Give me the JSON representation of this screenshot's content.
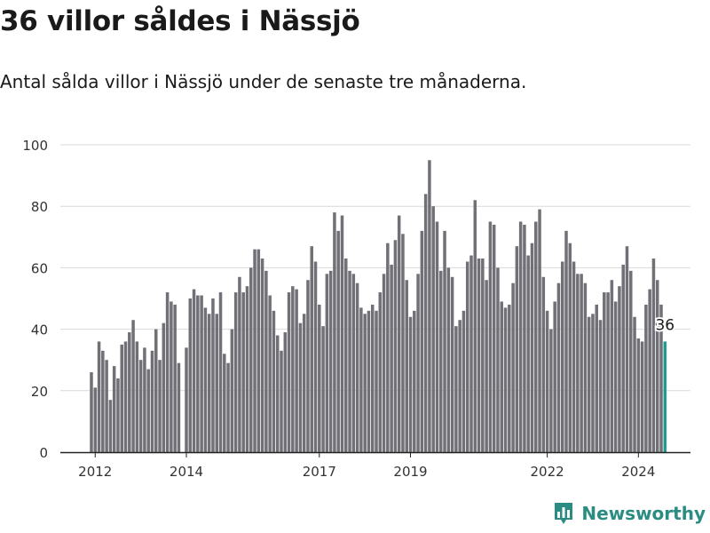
{
  "header": {
    "title": "36 villor såldes i Nässjö",
    "subtitle": "Antal sålda villor i Nässjö under de senaste tre månaderna."
  },
  "logo": {
    "text": "Newsworthy",
    "icon": "bar-chart-icon",
    "color": "#2a8c82"
  },
  "colors": {
    "bar": "#717076",
    "highlight": "#1f9b92",
    "grid": "#d9d9d9",
    "axis": "#222222"
  },
  "chart_data": {
    "type": "bar",
    "title": "",
    "xlabel": "",
    "ylabel": "",
    "ylim": [
      0,
      100
    ],
    "yticks": [
      0,
      20,
      40,
      60,
      80,
      100
    ],
    "xticks": [
      {
        "label": "2012",
        "month": "2012-02"
      },
      {
        "label": "2014",
        "month": "2014-02"
      },
      {
        "label": "2017",
        "month": "2017-01"
      },
      {
        "label": "2019",
        "month": "2019-01"
      },
      {
        "label": "2022",
        "month": "2022-01"
      },
      {
        "label": "2024",
        "month": "2024-01"
      }
    ],
    "grid": true,
    "start_month": "2012-01",
    "values": [
      26,
      21,
      36,
      33,
      30,
      17,
      28,
      24,
      35,
      36,
      39,
      43,
      36,
      30,
      34,
      27,
      33,
      40,
      30,
      42,
      52,
      49,
      48,
      29,
      0,
      34,
      50,
      53,
      51,
      51,
      47,
      45,
      50,
      45,
      52,
      32,
      29,
      40,
      52,
      57,
      52,
      54,
      60,
      66,
      66,
      63,
      59,
      51,
      46,
      38,
      33,
      39,
      52,
      54,
      53,
      42,
      45,
      56,
      67,
      62,
      48,
      41,
      58,
      59,
      78,
      72,
      77,
      63,
      59,
      58,
      55,
      47,
      45,
      46,
      48,
      46,
      52,
      58,
      68,
      61,
      69,
      77,
      71,
      56,
      44,
      46,
      58,
      72,
      84,
      95,
      80,
      75,
      59,
      72,
      60,
      57,
      41,
      43,
      46,
      62,
      64,
      82,
      63,
      63,
      56,
      75,
      74,
      60,
      49,
      47,
      48,
      55,
      67,
      75,
      74,
      64,
      68,
      75,
      79,
      57,
      46,
      40,
      49,
      55,
      62,
      72,
      68,
      62,
      58,
      58,
      55,
      44,
      45,
      48,
      43,
      52,
      52,
      56,
      49,
      54,
      61,
      67,
      59,
      44,
      37,
      36,
      48,
      53,
      63,
      56,
      48,
      36
    ],
    "highlight": {
      "index": 151,
      "value": 36,
      "label": "36"
    }
  }
}
